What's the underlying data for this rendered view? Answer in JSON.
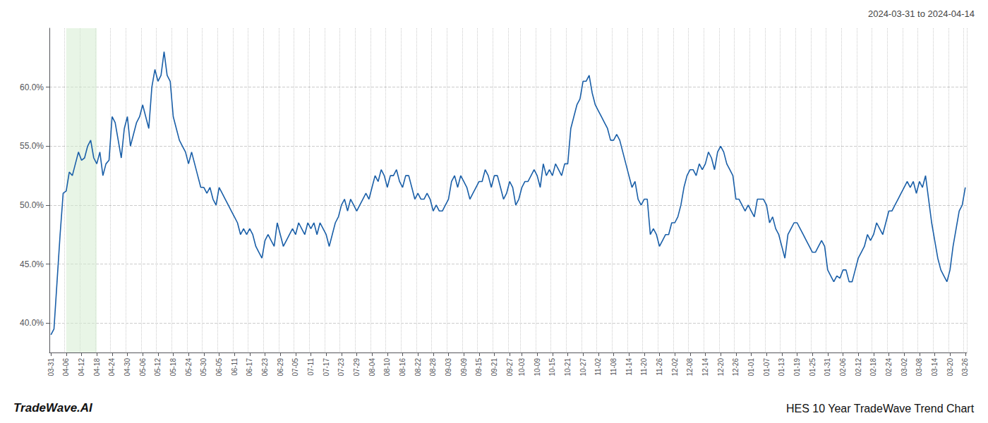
{
  "chart_data": {
    "type": "line",
    "title": "HES 10 Year TradeWave Trend Chart",
    "subtitle": "2024-03-31 to 2024-04-14",
    "annotations": [
      "TradeWave.AI"
    ],
    "color": "#1a5fa8",
    "grid": true,
    "highlight": {
      "x_start": "04-06",
      "x_end": "04-18",
      "color": "#d6ecd2"
    },
    "ylim": [
      37.5,
      65.0
    ],
    "yticks": [
      {
        "value": 40.0,
        "label": "40.0%"
      },
      {
        "value": 45.0,
        "label": "45.0%"
      },
      {
        "value": 50.0,
        "label": "50.0%"
      },
      {
        "value": 55.0,
        "label": "55.0%"
      },
      {
        "value": 60.0,
        "label": "60.0%"
      }
    ],
    "categories": [
      "03-31",
      null,
      null,
      null,
      null,
      "04-06",
      null,
      null,
      null,
      null,
      "04-12",
      null,
      null,
      null,
      null,
      "04-18",
      null,
      null,
      null,
      null,
      "04-24",
      null,
      null,
      null,
      null,
      "04-30",
      null,
      null,
      null,
      null,
      "05-06",
      null,
      null,
      null,
      null,
      "05-12",
      null,
      null,
      null,
      null,
      "05-18",
      null,
      null,
      null,
      null,
      "05-24",
      null,
      null,
      null,
      null,
      "05-30",
      null,
      null,
      null,
      null,
      "06-05",
      null,
      null,
      null,
      null,
      "06-11",
      null,
      null,
      null,
      null,
      "06-17",
      null,
      null,
      null,
      null,
      "06-23",
      null,
      null,
      null,
      null,
      "06-29",
      null,
      null,
      null,
      null,
      "07-05",
      null,
      null,
      null,
      null,
      "07-11",
      null,
      null,
      null,
      null,
      "07-17",
      null,
      null,
      null,
      null,
      "07-23",
      null,
      null,
      null,
      null,
      "07-29",
      null,
      null,
      null,
      null,
      "08-04",
      null,
      null,
      null,
      null,
      "08-10",
      null,
      null,
      null,
      null,
      "08-16",
      null,
      null,
      null,
      null,
      "08-22",
      null,
      null,
      null,
      null,
      "08-28",
      null,
      null,
      null,
      null,
      "09-03",
      null,
      null,
      null,
      null,
      "09-09",
      null,
      null,
      null,
      null,
      "09-15",
      null,
      null,
      null,
      null,
      "09-21",
      null,
      null,
      null,
      null,
      "09-27",
      null,
      null,
      null,
      "10-03",
      null,
      null,
      null,
      null,
      "10-09",
      null,
      null,
      null,
      null,
      "10-15",
      null,
      null,
      null,
      null,
      "10-21",
      null,
      null,
      null,
      null,
      "10-27",
      null,
      null,
      null,
      null,
      "11-02",
      null,
      null,
      null,
      null,
      "11-08",
      null,
      null,
      null,
      null,
      "11-14",
      null,
      null,
      null,
      null,
      "11-20",
      null,
      null,
      null,
      null,
      "11-26",
      null,
      null,
      null,
      null,
      "12-02",
      null,
      null,
      null,
      null,
      "12-08",
      null,
      null,
      null,
      null,
      "12-14",
      null,
      null,
      null,
      null,
      "12-20",
      null,
      null,
      null,
      null,
      "12-26",
      null,
      null,
      null,
      null,
      "01-01",
      null,
      null,
      null,
      null,
      "01-07",
      null,
      null,
      null,
      null,
      "01-13",
      null,
      null,
      null,
      null,
      "01-19",
      null,
      null,
      null,
      null,
      "01-25",
      null,
      null,
      null,
      null,
      "01-31",
      null,
      null,
      null,
      null,
      "02-06",
      null,
      null,
      null,
      null,
      "02-12",
      null,
      null,
      null,
      null,
      "02-18",
      null,
      null,
      null,
      null,
      "02-24",
      null,
      null,
      null,
      null,
      "03-02",
      null,
      null,
      null,
      null,
      "03-08",
      null,
      null,
      null,
      null,
      "03-14",
      null,
      null,
      null,
      null,
      "03-20",
      null,
      null,
      null,
      null,
      "03-26"
    ],
    "values": [
      39.0,
      39.5,
      43.5,
      47.5,
      51.0,
      51.2,
      52.8,
      52.5,
      53.5,
      54.5,
      53.8,
      54.0,
      55.0,
      55.5,
      54.0,
      53.5,
      54.5,
      52.5,
      53.5,
      53.8,
      57.5,
      57.0,
      55.5,
      54.0,
      56.5,
      57.5,
      55.0,
      56.0,
      57.0,
      57.5,
      58.5,
      57.5,
      56.5,
      60.0,
      61.5,
      60.5,
      61.0,
      63.0,
      61.0,
      60.5,
      57.5,
      56.5,
      55.5,
      55.0,
      54.5,
      53.5,
      54.5,
      53.5,
      52.5,
      51.5,
      51.5,
      51.0,
      51.5,
      50.5,
      50.0,
      51.5,
      51.0,
      50.5,
      50.0,
      49.5,
      49.0,
      48.5,
      47.5,
      48.0,
      47.5,
      48.0,
      47.5,
      46.5,
      46.0,
      45.5,
      47.0,
      47.5,
      47.0,
      46.5,
      48.5,
      47.5,
      46.5,
      47.0,
      47.5,
      48.0,
      47.5,
      48.5,
      48.0,
      47.5,
      48.5,
      48.0,
      48.5,
      47.5,
      48.5,
      48.0,
      47.5,
      46.5,
      47.5,
      48.5,
      49.0,
      50.0,
      50.5,
      49.5,
      50.5,
      50.0,
      49.5,
      50.0,
      50.5,
      51.0,
      50.5,
      51.5,
      52.5,
      52.0,
      53.0,
      52.5,
      51.5,
      52.5,
      52.5,
      53.0,
      52.0,
      51.5,
      52.5,
      52.5,
      51.5,
      50.5,
      51.0,
      50.5,
      50.5,
      51.0,
      50.5,
      49.5,
      50.0,
      49.5,
      49.5,
      50.0,
      50.5,
      52.0,
      52.5,
      51.5,
      52.5,
      52.0,
      51.5,
      50.5,
      51.0,
      51.5,
      52.0,
      52.0,
      53.0,
      52.5,
      51.5,
      52.5,
      52.5,
      51.5,
      50.5,
      51.0,
      52.0,
      51.5,
      50.0,
      50.5,
      51.5,
      52.0,
      52.0,
      52.5,
      53.0,
      52.5,
      51.5,
      53.5,
      52.5,
      53.0,
      52.5,
      53.5,
      53.0,
      52.5,
      53.5,
      53.5,
      56.5,
      57.5,
      58.5,
      59.0,
      60.5,
      60.5,
      61.0,
      59.5,
      58.5,
      58.0,
      57.5,
      57.0,
      56.5,
      55.5,
      55.5,
      56.0,
      55.5,
      54.5,
      53.5,
      52.5,
      51.5,
      52.0,
      50.5,
      50.0,
      50.5,
      50.5,
      47.5,
      48.0,
      47.5,
      46.5,
      47.0,
      47.5,
      47.5,
      48.5,
      48.5,
      49.0,
      50.0,
      51.5,
      52.5,
      53.0,
      53.0,
      52.5,
      53.5,
      53.0,
      53.5,
      54.5,
      54.0,
      53.0,
      54.5,
      55.0,
      54.5,
      53.5,
      53.0,
      52.5,
      50.5,
      50.5,
      50.0,
      49.5,
      50.0,
      49.5,
      49.0,
      50.5,
      50.5,
      50.5,
      50.0,
      48.5,
      49.0,
      48.0,
      47.5,
      46.5,
      45.5,
      47.5,
      48.0,
      48.5,
      48.5,
      48.0,
      47.5,
      47.0,
      46.5,
      46.0,
      46.0,
      46.5,
      47.0,
      46.5,
      44.5,
      44.0,
      43.5,
      44.0,
      43.8,
      44.5,
      44.5,
      43.5,
      43.5,
      44.5,
      45.5,
      46.0,
      46.5,
      47.5,
      47.0,
      47.5,
      48.5,
      48.0,
      47.5,
      48.5,
      49.5,
      49.5,
      50.0,
      50.5,
      51.0,
      51.5,
      52.0,
      51.5,
      52.0,
      51.0,
      52.0,
      51.5,
      52.5,
      50.5,
      48.5,
      47.0,
      45.5,
      44.5,
      44.0,
      43.5,
      44.5,
      46.5,
      48.0,
      49.5,
      50.0,
      51.5
    ]
  }
}
